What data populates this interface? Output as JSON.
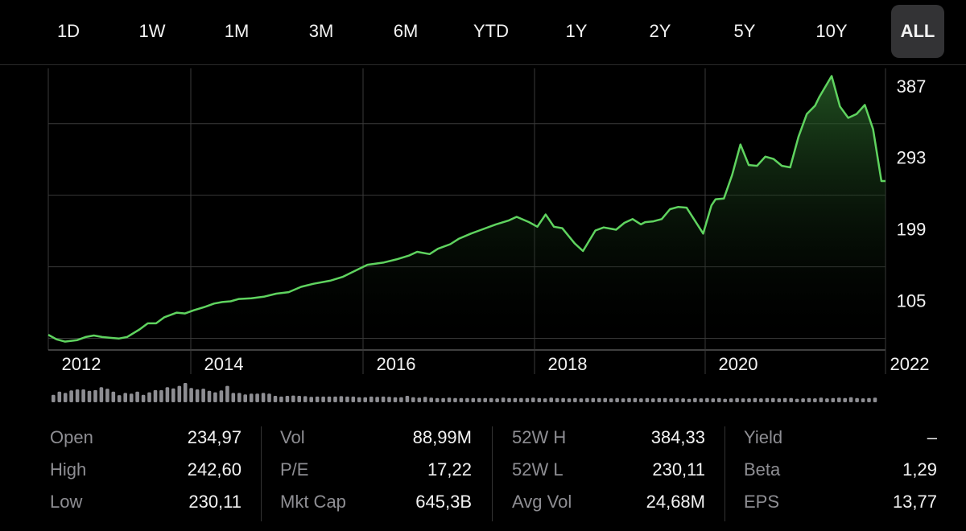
{
  "range_tabs": {
    "items": [
      "1D",
      "1W",
      "1M",
      "3M",
      "6M",
      "YTD",
      "1Y",
      "2Y",
      "5Y",
      "10Y",
      "ALL"
    ],
    "selected": "ALL"
  },
  "colors": {
    "background": "#000000",
    "line": "#5fd35f",
    "fill_top": "#2c6b2c",
    "grid": "#3a3a3a",
    "volume_bar": "#8e8e93",
    "label": "#8e8e93",
    "value": "#f2f2f2"
  },
  "chart_data": {
    "type": "area",
    "x_ticks": [
      "2012",
      "2014",
      "2016",
      "2018",
      "2020",
      "2022"
    ],
    "y_ticks": [
      387,
      293,
      199,
      105
    ],
    "ylim": [
      40,
      410
    ],
    "xlim": [
      2011.9,
      2022.0
    ],
    "grid": true,
    "y_axis_position": "right",
    "series": [
      {
        "x": [
          2011.9,
          2012.0,
          2012.1,
          2012.25,
          2012.35,
          2012.45,
          2012.55,
          2012.65,
          2012.75,
          2012.85,
          2013.0,
          2013.1,
          2013.2,
          2013.3,
          2013.45,
          2013.55,
          2013.65,
          2013.8,
          2013.9,
          2014.0,
          2014.1,
          2014.2,
          2014.35,
          2014.5,
          2014.65,
          2014.8,
          2014.95,
          2015.1,
          2015.3,
          2015.45,
          2015.6,
          2015.75,
          2015.95,
          2016.1,
          2016.25,
          2016.35,
          2016.5,
          2016.6,
          2016.75,
          2016.85,
          2017.0,
          2017.1,
          2017.3,
          2017.45,
          2017.55,
          2017.7,
          2017.8,
          2017.9,
          2018.0,
          2018.1,
          2018.25,
          2018.35,
          2018.5,
          2018.6,
          2018.75,
          2018.85,
          2018.95,
          2019.05,
          2019.1,
          2019.2,
          2019.3,
          2019.4,
          2019.5,
          2019.6,
          2019.7,
          2019.8,
          2019.9,
          2019.95,
          2020.05,
          2020.15,
          2020.25,
          2020.35,
          2020.45,
          2020.55,
          2020.65,
          2020.75,
          2020.85,
          2020.95,
          2021.05,
          2021.15,
          2021.2,
          2021.35,
          2021.45,
          2021.55,
          2021.65,
          2021.75,
          2021.85,
          2021.95,
          2022.0
        ],
        "values": [
          60,
          54,
          51,
          53,
          57,
          59,
          57,
          56,
          55,
          57,
          67,
          75,
          75,
          83,
          89,
          88,
          92,
          97,
          101,
          103,
          104,
          107,
          108,
          110,
          114,
          116,
          123,
          127,
          131,
          136,
          144,
          152,
          155,
          159,
          164,
          169,
          166,
          173,
          179,
          186,
          193,
          197,
          205,
          210,
          215,
          208,
          202,
          218,
          202,
          200,
          180,
          170,
          197,
          201,
          198,
          207,
          212,
          205,
          208,
          209,
          212,
          225,
          228,
          227,
          210,
          193,
          230,
          238,
          239,
          270,
          310,
          283,
          282,
          294,
          291,
          282,
          280,
          320,
          350,
          361,
          372,
          400,
          360,
          345,
          350,
          362,
          330,
          262,
          262
        ]
      }
    ],
    "volume": [
      2.1,
      3.0,
      2.6,
      3.3,
      3.6,
      3.6,
      3.2,
      3.4,
      4.2,
      3.8,
      3.0,
      2.0,
      2.6,
      2.4,
      3.0,
      2.1,
      2.8,
      3.4,
      3.4,
      4.2,
      3.9,
      4.6,
      5.4,
      4.0,
      3.6,
      3.8,
      3.2,
      2.8,
      3.3,
      4.6,
      2.6,
      2.6,
      2.2,
      2.4,
      2.4,
      2.6,
      2.4,
      1.8,
      1.6,
      1.8,
      1.9,
      1.8,
      1.7,
      1.5,
      1.6,
      1.6,
      1.6,
      1.6,
      1.7,
      1.6,
      1.6,
      1.4,
      1.4,
      1.6,
      1.5,
      1.6,
      1.5,
      1.4,
      1.4,
      1.8,
      1.4,
      1.3,
      1.5,
      1.3,
      1.2,
      1.2,
      1.3,
      1.2,
      1.2,
      1.2,
      1.2,
      1.2,
      1.2,
      1.2,
      1.1,
      1.3,
      1.2,
      1.2,
      1.2,
      1.2,
      1.3,
      1.2,
      1.1,
      1.3,
      1.2,
      1.2,
      1.1,
      1.2,
      1.1,
      1.2,
      1.2,
      1.2,
      1.2,
      1.1,
      1.2,
      1.1,
      1.2,
      1.2,
      1.1,
      1.2,
      1.1,
      1.2,
      1.2,
      1.1,
      1.2,
      1.1,
      1.0,
      1.2,
      1.1,
      1.2,
      1.1,
      1.2,
      1.0,
      1.1,
      1.2,
      1.1,
      1.1,
      1.2,
      1.1,
      1.2,
      1.2,
      1.1,
      1.2,
      1.2,
      1.0,
      1.1,
      1.2,
      1.1,
      1.3,
      1.1,
      1.2,
      1.3,
      1.2,
      1.4,
      1.2,
      1.1,
      1.2,
      1.3
    ]
  },
  "stats": [
    [
      {
        "label": "Open",
        "value": "234,97"
      },
      {
        "label": "High",
        "value": "242,60"
      },
      {
        "label": "Low",
        "value": "230,11"
      }
    ],
    [
      {
        "label": "Vol",
        "value": "88,99M"
      },
      {
        "label": "P/E",
        "value": "17,22"
      },
      {
        "label": "Mkt Cap",
        "value": "645,3B"
      }
    ],
    [
      {
        "label": "52W H",
        "value": "384,33"
      },
      {
        "label": "52W L",
        "value": "230,11"
      },
      {
        "label": "Avg Vol",
        "value": "24,68M"
      }
    ],
    [
      {
        "label": "Yield",
        "value": "–"
      },
      {
        "label": "Beta",
        "value": "1,29"
      },
      {
        "label": "EPS",
        "value": "13,77"
      }
    ]
  ]
}
